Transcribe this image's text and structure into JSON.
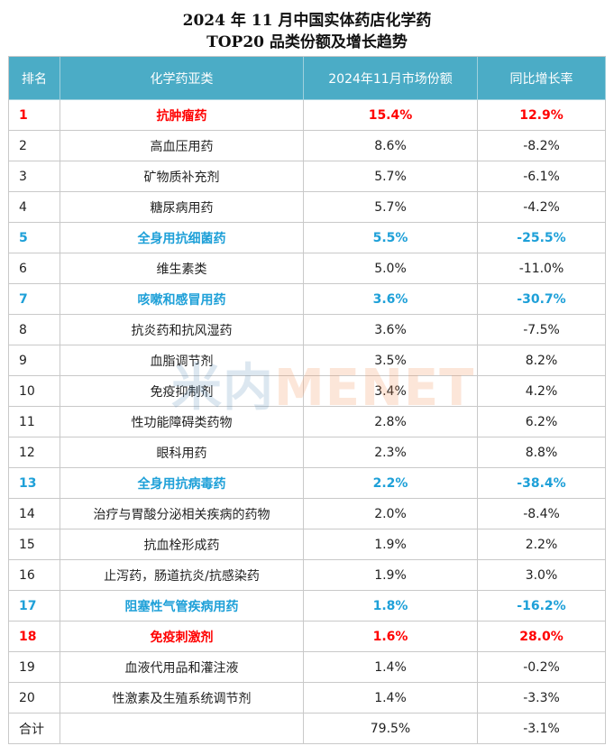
{
  "title_line1": "2024 年 11 月中国实体药店化学药",
  "title_line2": "TOP20 品类份额及增长趋势",
  "watermark": {
    "part1": "米内",
    "part2": "MENET"
  },
  "chart_data": {
    "type": "table",
    "columns": [
      "排名",
      "化学药亚类",
      "2024年11月市场份额",
      "同比增长率"
    ],
    "rows": [
      {
        "rank": "1",
        "category": "抗肿瘤药",
        "share": "15.4%",
        "growth": "12.9%",
        "highlight": "red"
      },
      {
        "rank": "2",
        "category": "高血压用药",
        "share": "8.6%",
        "growth": "-8.2%",
        "highlight": ""
      },
      {
        "rank": "3",
        "category": "矿物质补充剂",
        "share": "5.7%",
        "growth": "-6.1%",
        "highlight": ""
      },
      {
        "rank": "4",
        "category": "糖尿病用药",
        "share": "5.7%",
        "growth": "-4.2%",
        "highlight": ""
      },
      {
        "rank": "5",
        "category": "全身用抗细菌药",
        "share": "5.5%",
        "growth": "-25.5%",
        "highlight": "blue"
      },
      {
        "rank": "6",
        "category": "维生素类",
        "share": "5.0%",
        "growth": "-11.0%",
        "highlight": ""
      },
      {
        "rank": "7",
        "category": "咳嗽和感冒用药",
        "share": "3.6%",
        "growth": "-30.7%",
        "highlight": "blue"
      },
      {
        "rank": "8",
        "category": "抗炎药和抗风湿药",
        "share": "3.6%",
        "growth": "-7.5%",
        "highlight": ""
      },
      {
        "rank": "9",
        "category": "血脂调节剂",
        "share": "3.5%",
        "growth": "8.2%",
        "highlight": ""
      },
      {
        "rank": "10",
        "category": "免疫抑制剂",
        "share": "3.4%",
        "growth": "4.2%",
        "highlight": ""
      },
      {
        "rank": "11",
        "category": "性功能障碍类药物",
        "share": "2.8%",
        "growth": "6.2%",
        "highlight": ""
      },
      {
        "rank": "12",
        "category": "眼科用药",
        "share": "2.3%",
        "growth": "8.8%",
        "highlight": ""
      },
      {
        "rank": "13",
        "category": "全身用抗病毒药",
        "share": "2.2%",
        "growth": "-38.4%",
        "highlight": "blue"
      },
      {
        "rank": "14",
        "category": "治疗与胃酸分泌相关疾病的药物",
        "share": "2.0%",
        "growth": "-8.4%",
        "highlight": ""
      },
      {
        "rank": "15",
        "category": "抗血栓形成药",
        "share": "1.9%",
        "growth": "2.2%",
        "highlight": ""
      },
      {
        "rank": "16",
        "category": "止泻药，肠道抗炎/抗感染药",
        "share": "1.9%",
        "growth": "3.0%",
        "highlight": ""
      },
      {
        "rank": "17",
        "category": "阻塞性气管疾病用药",
        "share": "1.8%",
        "growth": "-16.2%",
        "highlight": "blue"
      },
      {
        "rank": "18",
        "category": "免疫刺激剂",
        "share": "1.6%",
        "growth": "28.0%",
        "highlight": "red"
      },
      {
        "rank": "19",
        "category": "血液代用品和灌注液",
        "share": "1.4%",
        "growth": "-0.2%",
        "highlight": ""
      },
      {
        "rank": "20",
        "category": "性激素及生殖系统调节剂",
        "share": "1.4%",
        "growth": "-3.3%",
        "highlight": ""
      }
    ],
    "total": {
      "rank": "合计",
      "category": "",
      "share": "79.5%",
      "growth": "-3.1%"
    },
    "colors": {
      "header_bg": "#4bacc6",
      "highlight_red": "#ff0000",
      "highlight_blue": "#1ea0d8"
    }
  }
}
